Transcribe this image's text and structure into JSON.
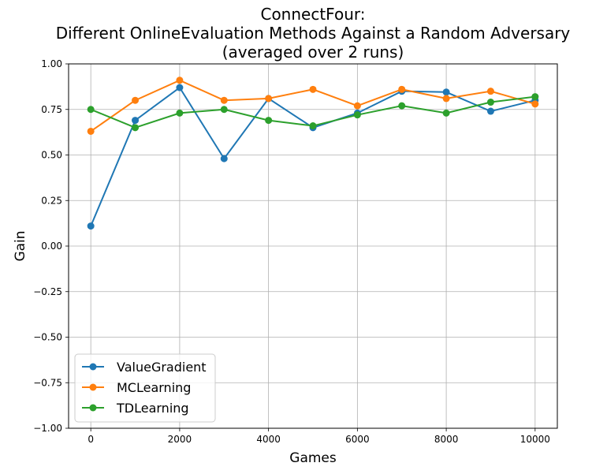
{
  "chart_data": {
    "type": "line",
    "title_lines": [
      "ConnectFour:",
      "Different OnlineEvaluation Methods Against a Random Adversary",
      "(averaged over 2 runs)"
    ],
    "xlabel": "Games",
    "ylabel": "Gain",
    "xlim": [
      -500,
      10500
    ],
    "ylim": [
      -1.0,
      1.0
    ],
    "xticks": [
      0,
      2000,
      4000,
      6000,
      8000,
      10000
    ],
    "yticks": [
      -1.0,
      -0.75,
      -0.5,
      -0.25,
      0.0,
      0.25,
      0.5,
      0.75,
      1.0
    ],
    "xtick_labels": [
      "0",
      "2000",
      "4000",
      "6000",
      "8000",
      "10000"
    ],
    "ytick_labels": [
      "−1.00",
      "−0.75",
      "−0.50",
      "−0.25",
      "0.00",
      "0.25",
      "0.50",
      "0.75",
      "1.00"
    ],
    "grid": true,
    "legend_position": "lower-left",
    "x": [
      0,
      1000,
      2000,
      3000,
      4000,
      5000,
      6000,
      7000,
      8000,
      9000,
      10000
    ],
    "series": [
      {
        "name": "ValueGradient",
        "color": "#1f77b4",
        "values": [
          0.11,
          0.69,
          0.87,
          0.48,
          0.81,
          0.65,
          0.73,
          0.85,
          0.845,
          0.74,
          0.8
        ]
      },
      {
        "name": "MCLearning",
        "color": "#ff7f0e",
        "values": [
          0.63,
          0.8,
          0.91,
          0.8,
          0.81,
          0.86,
          0.77,
          0.86,
          0.81,
          0.85,
          0.78
        ]
      },
      {
        "name": "TDLearning",
        "color": "#2ca02c",
        "values": [
          0.75,
          0.65,
          0.73,
          0.75,
          0.69,
          0.66,
          0.72,
          0.77,
          0.73,
          0.79,
          0.82
        ]
      }
    ]
  }
}
